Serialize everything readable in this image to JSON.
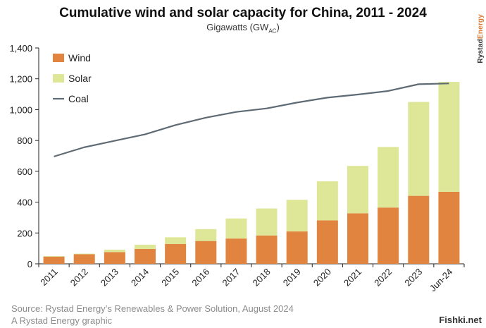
{
  "chart_data": {
    "type": "bar",
    "title": "Cumulative wind and solar capacity for China, 2011 - 2024",
    "subtitle_main": "Gigawatts (GW",
    "subtitle_sub": "AC",
    "subtitle_close": ")",
    "categories": [
      "2011",
      "2012",
      "2013",
      "2014",
      "2015",
      "2016",
      "2017",
      "2018",
      "2019",
      "2020",
      "2021",
      "2022",
      "2023",
      "Jun-24"
    ],
    "series": [
      {
        "name": "Wind",
        "type": "stacked-bar",
        "color": "#e0843f",
        "values": [
          47,
          62,
          76,
          96,
          129,
          148,
          164,
          184,
          210,
          282,
          328,
          365,
          441,
          467
        ]
      },
      {
        "name": "Solar",
        "type": "stacked-bar",
        "color": "#dde797",
        "values": [
          3,
          4,
          16,
          28,
          43,
          77,
          130,
          175,
          205,
          253,
          307,
          393,
          609,
          713
        ]
      },
      {
        "name": "Coal",
        "type": "line",
        "color": "#5f6b74",
        "values": [
          696,
          756,
          798,
          840,
          900,
          948,
          985,
          1008,
          1046,
          1078,
          1098,
          1121,
          1165,
          1170
        ]
      }
    ],
    "ylim": [
      0,
      1400
    ],
    "yticks": [
      0,
      200,
      400,
      600,
      800,
      1000,
      1200,
      1400
    ],
    "ytick_labels": [
      "0",
      "200",
      "400",
      "600",
      "800",
      "1,000",
      "1,200",
      "1,400"
    ],
    "xlabel": "",
    "ylabel": ""
  },
  "brand": {
    "part1": "Rystad",
    "part2": "Energy"
  },
  "source": {
    "line1": "Source: Rystad Energy’s Renewables & Power Solution, August 2024",
    "line2": "A Rystad Energy graphic"
  },
  "watermark": "Fishki.net"
}
